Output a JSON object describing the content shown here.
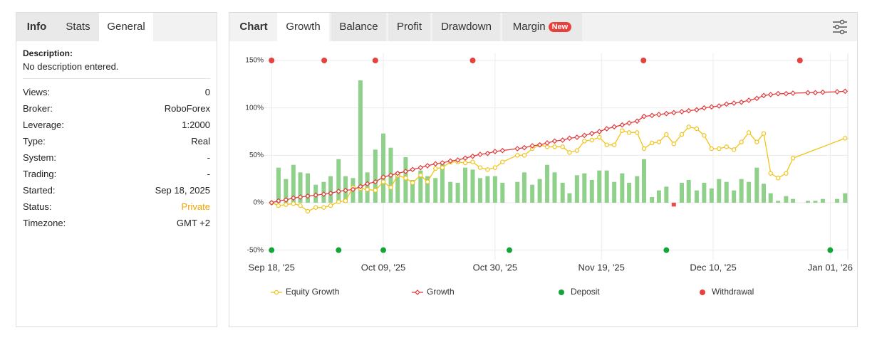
{
  "left_panel": {
    "tabs": [
      "Info",
      "Stats",
      "General"
    ],
    "description_label": "Description:",
    "description": "No description entered.",
    "rows": [
      [
        "Views:",
        "0"
      ],
      [
        "Broker:",
        "RoboForex"
      ],
      [
        "Leverage:",
        "1:2000"
      ],
      [
        "Type:",
        "Real"
      ],
      [
        "System:",
        "-"
      ],
      [
        "Trading:",
        "-"
      ],
      [
        "Started:",
        "Sep 18, 2025"
      ],
      [
        "Status:",
        "Private"
      ],
      [
        "Timezone:",
        "GMT +2"
      ]
    ]
  },
  "right_panel": {
    "tabs": [
      "Chart",
      "Growth",
      "Balance",
      "Profit",
      "Drawdown",
      "Margin"
    ],
    "badge": "New"
  },
  "chart_data": {
    "type": "bar-line",
    "xlim": [
      -1.5,
      108.3
    ],
    "xticks": [
      {
        "value": 0,
        "label": "Sep 18, '25"
      },
      {
        "value": 21,
        "label": "Oct 09, '25"
      },
      {
        "value": 42,
        "label": "Oct 30, '25"
      },
      {
        "value": 62,
        "label": "Nov 19, '25"
      },
      {
        "value": 83,
        "label": "Dec 10, '25"
      },
      {
        "value": 105,
        "label": "Jan 01, '26"
      }
    ],
    "ylim": [
      -60,
      157.5
    ],
    "yticks": [
      {
        "value": -50,
        "label": "-50%"
      },
      {
        "value": 0,
        "label": "0%"
      },
      {
        "value": 50,
        "label": "50%"
      },
      {
        "value": 100,
        "label": "100%"
      },
      {
        "value": 150,
        "label": "150%"
      }
    ],
    "grid": true,
    "bars": {
      "color": "#8fd18a",
      "negative_color": "#f04848",
      "x": [
        1.3,
        2.7,
        4.1,
        5.4,
        6.8,
        8.3,
        9.8,
        11.1,
        12.6,
        13.9,
        15.3,
        16.7,
        18,
        19.5,
        21,
        22.4,
        23.7,
        25.2,
        26.5,
        28,
        29.3,
        30.8,
        32.1,
        33.6,
        35,
        36.4,
        37.8,
        39.2,
        40.6,
        42,
        43.4,
        46.2,
        47.5,
        49,
        50.4,
        51.8,
        53.2,
        54.7,
        56,
        57.4,
        58.8,
        60.2,
        61.6,
        63,
        64.4,
        65.9,
        67.2,
        68.7,
        70,
        71.5,
        72.8,
        74.2,
        75.6,
        77.1,
        78.4,
        79.9,
        81.3,
        82.7,
        84.1,
        85.5,
        86.9,
        88.3,
        89.7,
        91.2,
        92.5,
        93.8,
        95.2,
        96.7,
        98,
        100.8,
        102.2,
        103.6,
        106.3,
        107.8
      ],
      "values": [
        37,
        25,
        40,
        32,
        31,
        19,
        22,
        28,
        46,
        28,
        26,
        129,
        32,
        56,
        73,
        58,
        31,
        48,
        24,
        34,
        28,
        26,
        41,
        22,
        21,
        37,
        35,
        26,
        28,
        28,
        21,
        22,
        32,
        19,
        25,
        40,
        32,
        21,
        10,
        29,
        31,
        24,
        34,
        34,
        22,
        31,
        21,
        28,
        46,
        6,
        13,
        17,
        -4,
        21,
        24,
        13,
        21,
        15,
        25,
        22,
        13,
        25,
        22,
        37,
        20,
        10,
        2,
        7,
        4,
        2,
        2,
        4,
        4,
        10
      ]
    },
    "series": [
      {
        "name": "Equity Growth",
        "type": "line",
        "marker": "circle",
        "color": "#f2c31a",
        "x": [
          0,
          1.3,
          2.7,
          4.1,
          5.4,
          6.8,
          8.3,
          9.8,
          11.1,
          12.6,
          13.9,
          15.3,
          16.7,
          18,
          19.5,
          21,
          22.4,
          23.7,
          25.2,
          26.5,
          28,
          29.3,
          30.8,
          32.1,
          33.6,
          35,
          36.4,
          37.8,
          39.2,
          40.6,
          42,
          43.4,
          46.2,
          47.5,
          49,
          50.4,
          51.8,
          53.2,
          54.7,
          56,
          57.4,
          58.8,
          60.2,
          61.6,
          63,
          64.4,
          65.9,
          67.2,
          68.7,
          70,
          71.5,
          72.8,
          74.2,
          75.6,
          77.1,
          78.4,
          79.9,
          81.3,
          82.7,
          84.1,
          85.5,
          86.9,
          88.3,
          89.7,
          91.2,
          92.5,
          93.8,
          95.2,
          96.7,
          98,
          107.8
        ],
        "values": [
          0,
          -3,
          -2,
          -1,
          -3,
          -9,
          -5,
          -5,
          -3,
          1,
          2,
          16,
          15,
          14,
          13,
          22,
          16,
          29,
          26,
          21,
          29,
          22,
          36,
          37,
          43,
          43,
          42,
          43,
          37,
          35,
          37,
          43,
          50,
          50,
          57,
          61,
          59,
          59,
          59,
          53,
          55,
          65,
          66,
          69,
          61,
          61,
          76,
          74,
          74,
          57,
          63,
          64,
          72,
          62,
          72,
          80,
          78,
          71,
          57,
          57,
          59,
          56,
          64,
          74,
          64,
          73,
          31,
          26,
          31,
          47,
          68
        ]
      },
      {
        "name": "Growth",
        "type": "line",
        "marker": "diamond",
        "color": "#e03c3c",
        "x": [
          0,
          1.3,
          2.7,
          4.1,
          5.4,
          6.8,
          8.3,
          9.8,
          11.1,
          12.6,
          13.9,
          15.3,
          16.7,
          18,
          19.5,
          21,
          22.4,
          23.7,
          25.2,
          26.5,
          28,
          29.3,
          30.8,
          32.1,
          33.6,
          35,
          36.4,
          37.8,
          39.2,
          40.6,
          42,
          43.4,
          46.2,
          47.5,
          49,
          50.4,
          51.8,
          53.2,
          54.7,
          56,
          57.4,
          58.8,
          60.2,
          61.6,
          63,
          64.4,
          65.9,
          67.2,
          68.7,
          70,
          71.5,
          72.8,
          74.2,
          75.6,
          77.1,
          78.4,
          79.9,
          81.3,
          82.7,
          84.1,
          85.5,
          86.9,
          88.3,
          89.7,
          91.2,
          92.5,
          93.8,
          95.2,
          96.7,
          98,
          100.8,
          102.2,
          103.6,
          106.3,
          107.8
        ],
        "values": [
          0,
          2,
          3,
          5,
          6,
          7,
          8,
          9,
          10,
          12,
          13,
          14,
          17,
          20,
          22,
          27,
          29,
          31,
          33,
          35,
          37,
          39,
          41,
          42,
          44,
          45,
          47,
          49,
          51,
          52,
          54,
          55,
          57,
          58,
          60,
          61,
          63,
          65,
          66,
          68,
          69,
          71,
          73,
          75,
          78,
          80,
          82,
          84,
          86,
          91,
          92,
          93,
          94,
          95,
          96,
          97,
          98,
          100,
          101,
          102,
          104,
          105,
          106,
          108,
          110,
          113,
          114,
          115,
          115,
          115.5,
          116,
          116,
          116.5,
          117,
          117.5
        ]
      },
      {
        "name": "Deposit",
        "type": "event",
        "position": "bottom",
        "color": "#13a538",
        "x": [
          0,
          12.6,
          21,
          44.7,
          74.2,
          105
        ]
      },
      {
        "name": "Withdrawal",
        "type": "event",
        "position": "top",
        "color": "#e8413c",
        "x": [
          0,
          9.9,
          19.5,
          37.8,
          69.9,
          99.3
        ]
      }
    ]
  }
}
